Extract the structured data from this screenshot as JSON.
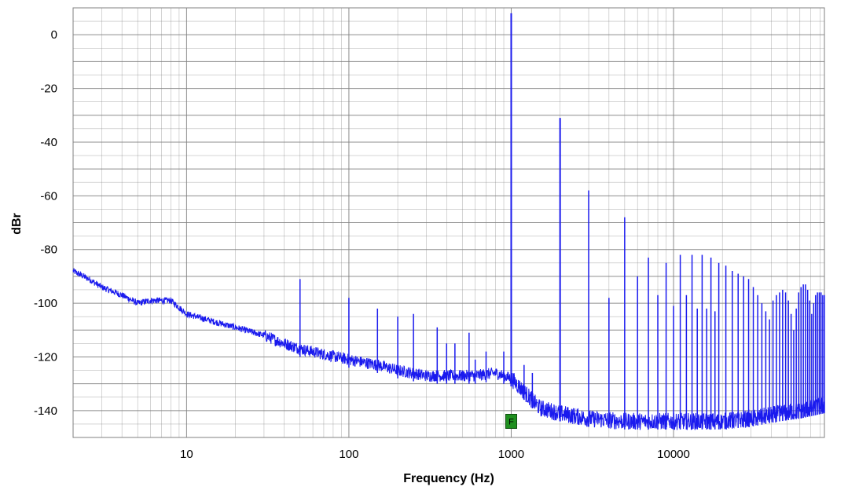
{
  "chart_data": {
    "type": "line",
    "title": "",
    "xlabel": "Frequency (Hz)",
    "ylabel": "dBr",
    "x_scale": "log",
    "xlim": [
      2,
      85000
    ],
    "ylim": [
      -150,
      10
    ],
    "x_ticks": [
      {
        "value": 10,
        "label": "10"
      },
      {
        "value": 100,
        "label": "100"
      },
      {
        "value": 1000,
        "label": "1000"
      },
      {
        "value": 10000,
        "label": "10000"
      }
    ],
    "y_ticks": [
      {
        "value": 0,
        "label": "0"
      },
      {
        "value": -20,
        "label": "-20"
      },
      {
        "value": -40,
        "label": "-40"
      },
      {
        "value": -60,
        "label": "-60"
      },
      {
        "value": -80,
        "label": "-80"
      },
      {
        "value": -100,
        "label": "-100"
      },
      {
        "value": -120,
        "label": "-120"
      },
      {
        "value": -140,
        "label": "-140"
      }
    ],
    "grid": true,
    "line_color": "#1a1aee",
    "grid_color": "#808080",
    "noise_floor": [
      [
        2,
        -88
      ],
      [
        2.5,
        -91
      ],
      [
        3,
        -94
      ],
      [
        4,
        -97
      ],
      [
        5,
        -100
      ],
      [
        6,
        -99
      ],
      [
        8,
        -99
      ],
      [
        10,
        -104
      ],
      [
        15,
        -107
      ],
      [
        20,
        -109
      ],
      [
        30,
        -112
      ],
      [
        40,
        -115
      ],
      [
        50,
        -117
      ],
      [
        70,
        -119
      ],
      [
        100,
        -121
      ],
      [
        150,
        -123
      ],
      [
        200,
        -125
      ],
      [
        300,
        -127
      ],
      [
        400,
        -127
      ],
      [
        600,
        -127
      ],
      [
        800,
        -126
      ],
      [
        1000,
        -128
      ],
      [
        1200,
        -133
      ],
      [
        1500,
        -139
      ],
      [
        2000,
        -141
      ],
      [
        3000,
        -143
      ],
      [
        5000,
        -144
      ],
      [
        8000,
        -144
      ],
      [
        12000,
        -144
      ],
      [
        20000,
        -144
      ],
      [
        30000,
        -143
      ],
      [
        45000,
        -141
      ],
      [
        60000,
        -140
      ],
      [
        85000,
        -138
      ]
    ],
    "peaks": [
      {
        "x": 50,
        "y": -91
      },
      {
        "x": 100,
        "y": -98
      },
      {
        "x": 150,
        "y": -102
      },
      {
        "x": 200,
        "y": -105
      },
      {
        "x": 250,
        "y": -104
      },
      {
        "x": 350,
        "y": -109
      },
      {
        "x": 400,
        "y": -115
      },
      {
        "x": 450,
        "y": -115
      },
      {
        "x": 550,
        "y": -111
      },
      {
        "x": 600,
        "y": -121
      },
      {
        "x": 700,
        "y": -118
      },
      {
        "x": 900,
        "y": -118
      },
      {
        "x": 1000,
        "y": 8
      },
      {
        "x": 1200,
        "y": -123
      },
      {
        "x": 1350,
        "y": -126
      },
      {
        "x": 2000,
        "y": -31
      },
      {
        "x": 3000,
        "y": -58
      },
      {
        "x": 4000,
        "y": -98
      },
      {
        "x": 5000,
        "y": -68
      },
      {
        "x": 6000,
        "y": -90
      },
      {
        "x": 7000,
        "y": -83
      },
      {
        "x": 8000,
        "y": -97
      },
      {
        "x": 9000,
        "y": -85
      },
      {
        "x": 10000,
        "y": -101
      },
      {
        "x": 11000,
        "y": -82
      },
      {
        "x": 12000,
        "y": -97
      },
      {
        "x": 13000,
        "y": -82
      },
      {
        "x": 14000,
        "y": -102
      },
      {
        "x": 15000,
        "y": -82
      },
      {
        "x": 16000,
        "y": -102
      },
      {
        "x": 17000,
        "y": -83
      },
      {
        "x": 18000,
        "y": -103
      },
      {
        "x": 19000,
        "y": -85
      },
      {
        "x": 21000,
        "y": -86
      },
      {
        "x": 23000,
        "y": -88
      },
      {
        "x": 25000,
        "y": -89
      },
      {
        "x": 27000,
        "y": -90
      },
      {
        "x": 29000,
        "y": -91
      },
      {
        "x": 31000,
        "y": -94
      },
      {
        "x": 33000,
        "y": -97
      },
      {
        "x": 35000,
        "y": -100
      },
      {
        "x": 37000,
        "y": -103
      },
      {
        "x": 39000,
        "y": -106
      },
      {
        "x": 41000,
        "y": -99
      },
      {
        "x": 43000,
        "y": -97
      },
      {
        "x": 45000,
        "y": -96
      },
      {
        "x": 47000,
        "y": -95
      },
      {
        "x": 49000,
        "y": -96
      },
      {
        "x": 51000,
        "y": -99
      },
      {
        "x": 53000,
        "y": -104
      },
      {
        "x": 55000,
        "y": -110
      },
      {
        "x": 57000,
        "y": -102
      },
      {
        "x": 59000,
        "y": -96
      },
      {
        "x": 61000,
        "y": -94
      },
      {
        "x": 63000,
        "y": -93
      },
      {
        "x": 65000,
        "y": -93
      },
      {
        "x": 67000,
        "y": -95
      },
      {
        "x": 69000,
        "y": -99
      },
      {
        "x": 71000,
        "y": -104
      },
      {
        "x": 73000,
        "y": -100
      },
      {
        "x": 75000,
        "y": -97
      },
      {
        "x": 77000,
        "y": -96
      },
      {
        "x": 79000,
        "y": -96
      },
      {
        "x": 81000,
        "y": -96
      },
      {
        "x": 83000,
        "y": -97
      },
      {
        "x": 85000,
        "y": -97
      }
    ],
    "marker": {
      "label": "F",
      "x": 1000,
      "y": -144,
      "color": "#1f8f1f"
    }
  }
}
